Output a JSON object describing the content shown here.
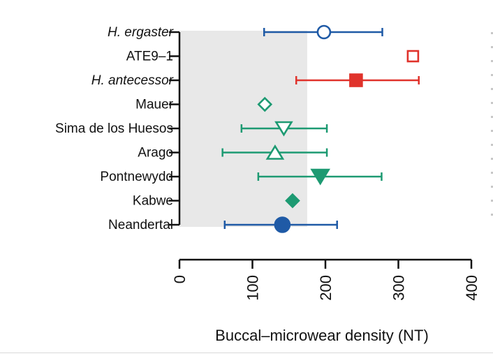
{
  "chart_data": {
    "type": "scatter",
    "title": "",
    "xlabel": "Buccal–microwear density (NT)",
    "ylabel": "",
    "xlim": [
      0,
      400
    ],
    "xticks": [
      "0",
      "100",
      "200",
      "300",
      "400"
    ],
    "tick_values": [
      0,
      100,
      200,
      300,
      400
    ],
    "shaded_region": [
      0,
      175
    ],
    "grid": false,
    "colors": {
      "blue": "#1f5aa6",
      "red": "#e0322b",
      "green": "#1d9a72",
      "shade": "#e8e8e8",
      "axis": "#111111"
    },
    "categories": [
      "H. ergaster",
      "ATE9–1",
      "H. antecessor",
      "Mauer",
      "Sima de los Huesos",
      "Arago",
      "Pontnewydd",
      "Kabwe",
      "Neandertal"
    ],
    "points": [
      {
        "label": "H. ergaster",
        "italic": true,
        "mean": 198,
        "low": 116,
        "high": 278,
        "marker": "circle-open",
        "color": "blue"
      },
      {
        "label": "ATE9–1",
        "italic": false,
        "mean": 320,
        "low": null,
        "high": null,
        "marker": "square-open",
        "color": "red"
      },
      {
        "label": "H. antecessor",
        "italic": true,
        "mean": 242,
        "low": 160,
        "high": 328,
        "marker": "square-filled",
        "color": "red"
      },
      {
        "label": "Mauer",
        "italic": false,
        "mean": 117,
        "low": null,
        "high": null,
        "marker": "diamond-open",
        "color": "green"
      },
      {
        "label": "Sima de los Huesos",
        "italic": false,
        "mean": 143,
        "low": 85,
        "high": 202,
        "marker": "triangle-down-open",
        "color": "green"
      },
      {
        "label": "Arago",
        "italic": false,
        "mean": 131,
        "low": 59,
        "high": 202,
        "marker": "triangle-up-open",
        "color": "green"
      },
      {
        "label": "Pontnewydd",
        "italic": false,
        "mean": 193,
        "low": 108,
        "high": 277,
        "marker": "triangle-down-filled",
        "color": "green"
      },
      {
        "label": "Kabwe",
        "italic": false,
        "mean": 155,
        "low": null,
        "high": null,
        "marker": "diamond-filled",
        "color": "green"
      },
      {
        "label": "Neandertal",
        "italic": false,
        "mean": 141,
        "low": 62,
        "high": 216,
        "marker": "circle-filled",
        "color": "blue"
      }
    ]
  }
}
